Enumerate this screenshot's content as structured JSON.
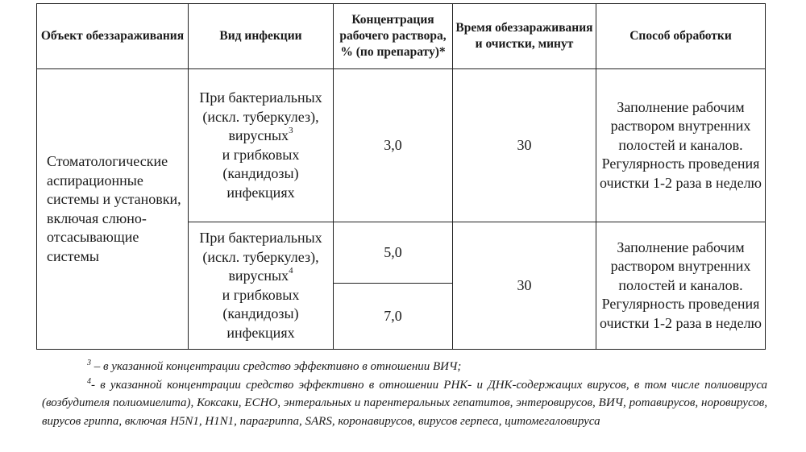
{
  "table": {
    "headers": [
      "Объект обеззараживания",
      "Вид инфекции",
      "Концентрация рабочего раствора, % (по препарату)*",
      "Время обеззараживания и очистки, минут",
      "Способ обработки"
    ],
    "object": "Стоматологические аспирационные системы и установки, включая слюно-отсасывающие системы",
    "row1": {
      "infection_pre": "При бактериальных (искл. туберкулез), вирусных",
      "infection_sup": "3",
      "infection_post": "и грибковых (кандидозы) инфекциях",
      "concentration": "3,0",
      "time": "30",
      "method": "Заполнение рабочим раствором внутренних полостей и каналов. Регулярность проведения очистки 1-2 раза в неделю"
    },
    "row2": {
      "infection_pre": "При бактериальных (искл. туберкулез), вирусных",
      "infection_sup": "4",
      "infection_post": "и грибковых (кандидозы) инфекциях",
      "concentration_a": "5,0",
      "concentration_b": "7,0",
      "time": "30",
      "method": "Заполнение рабочим раствором внутренних полостей и каналов. Регулярность проведения очистки 1-2 раза в неделю"
    }
  },
  "footnotes": {
    "fn1_mark": "3",
    "fn1_text": " – в указанной концентрации средство эффективно в отношении ВИЧ;",
    "fn2_mark": "4",
    "fn2_text": "- в указанной концентрации средство эффективно в отношении РНК- и ДНК-содержащих вирусов, в том числе полиовируса (возбудителя полиомиелита), Коксаки, ЕСНО, энтеральных и парентеральных гепатитов, энтеровирусов, ВИЧ, ротавирусов, норовирусов, вирусов гриппа, включая H5N1, H1N1, парагриппа, SARS, коронавирусов, вирусов герпеса, цитомегаловируса"
  }
}
